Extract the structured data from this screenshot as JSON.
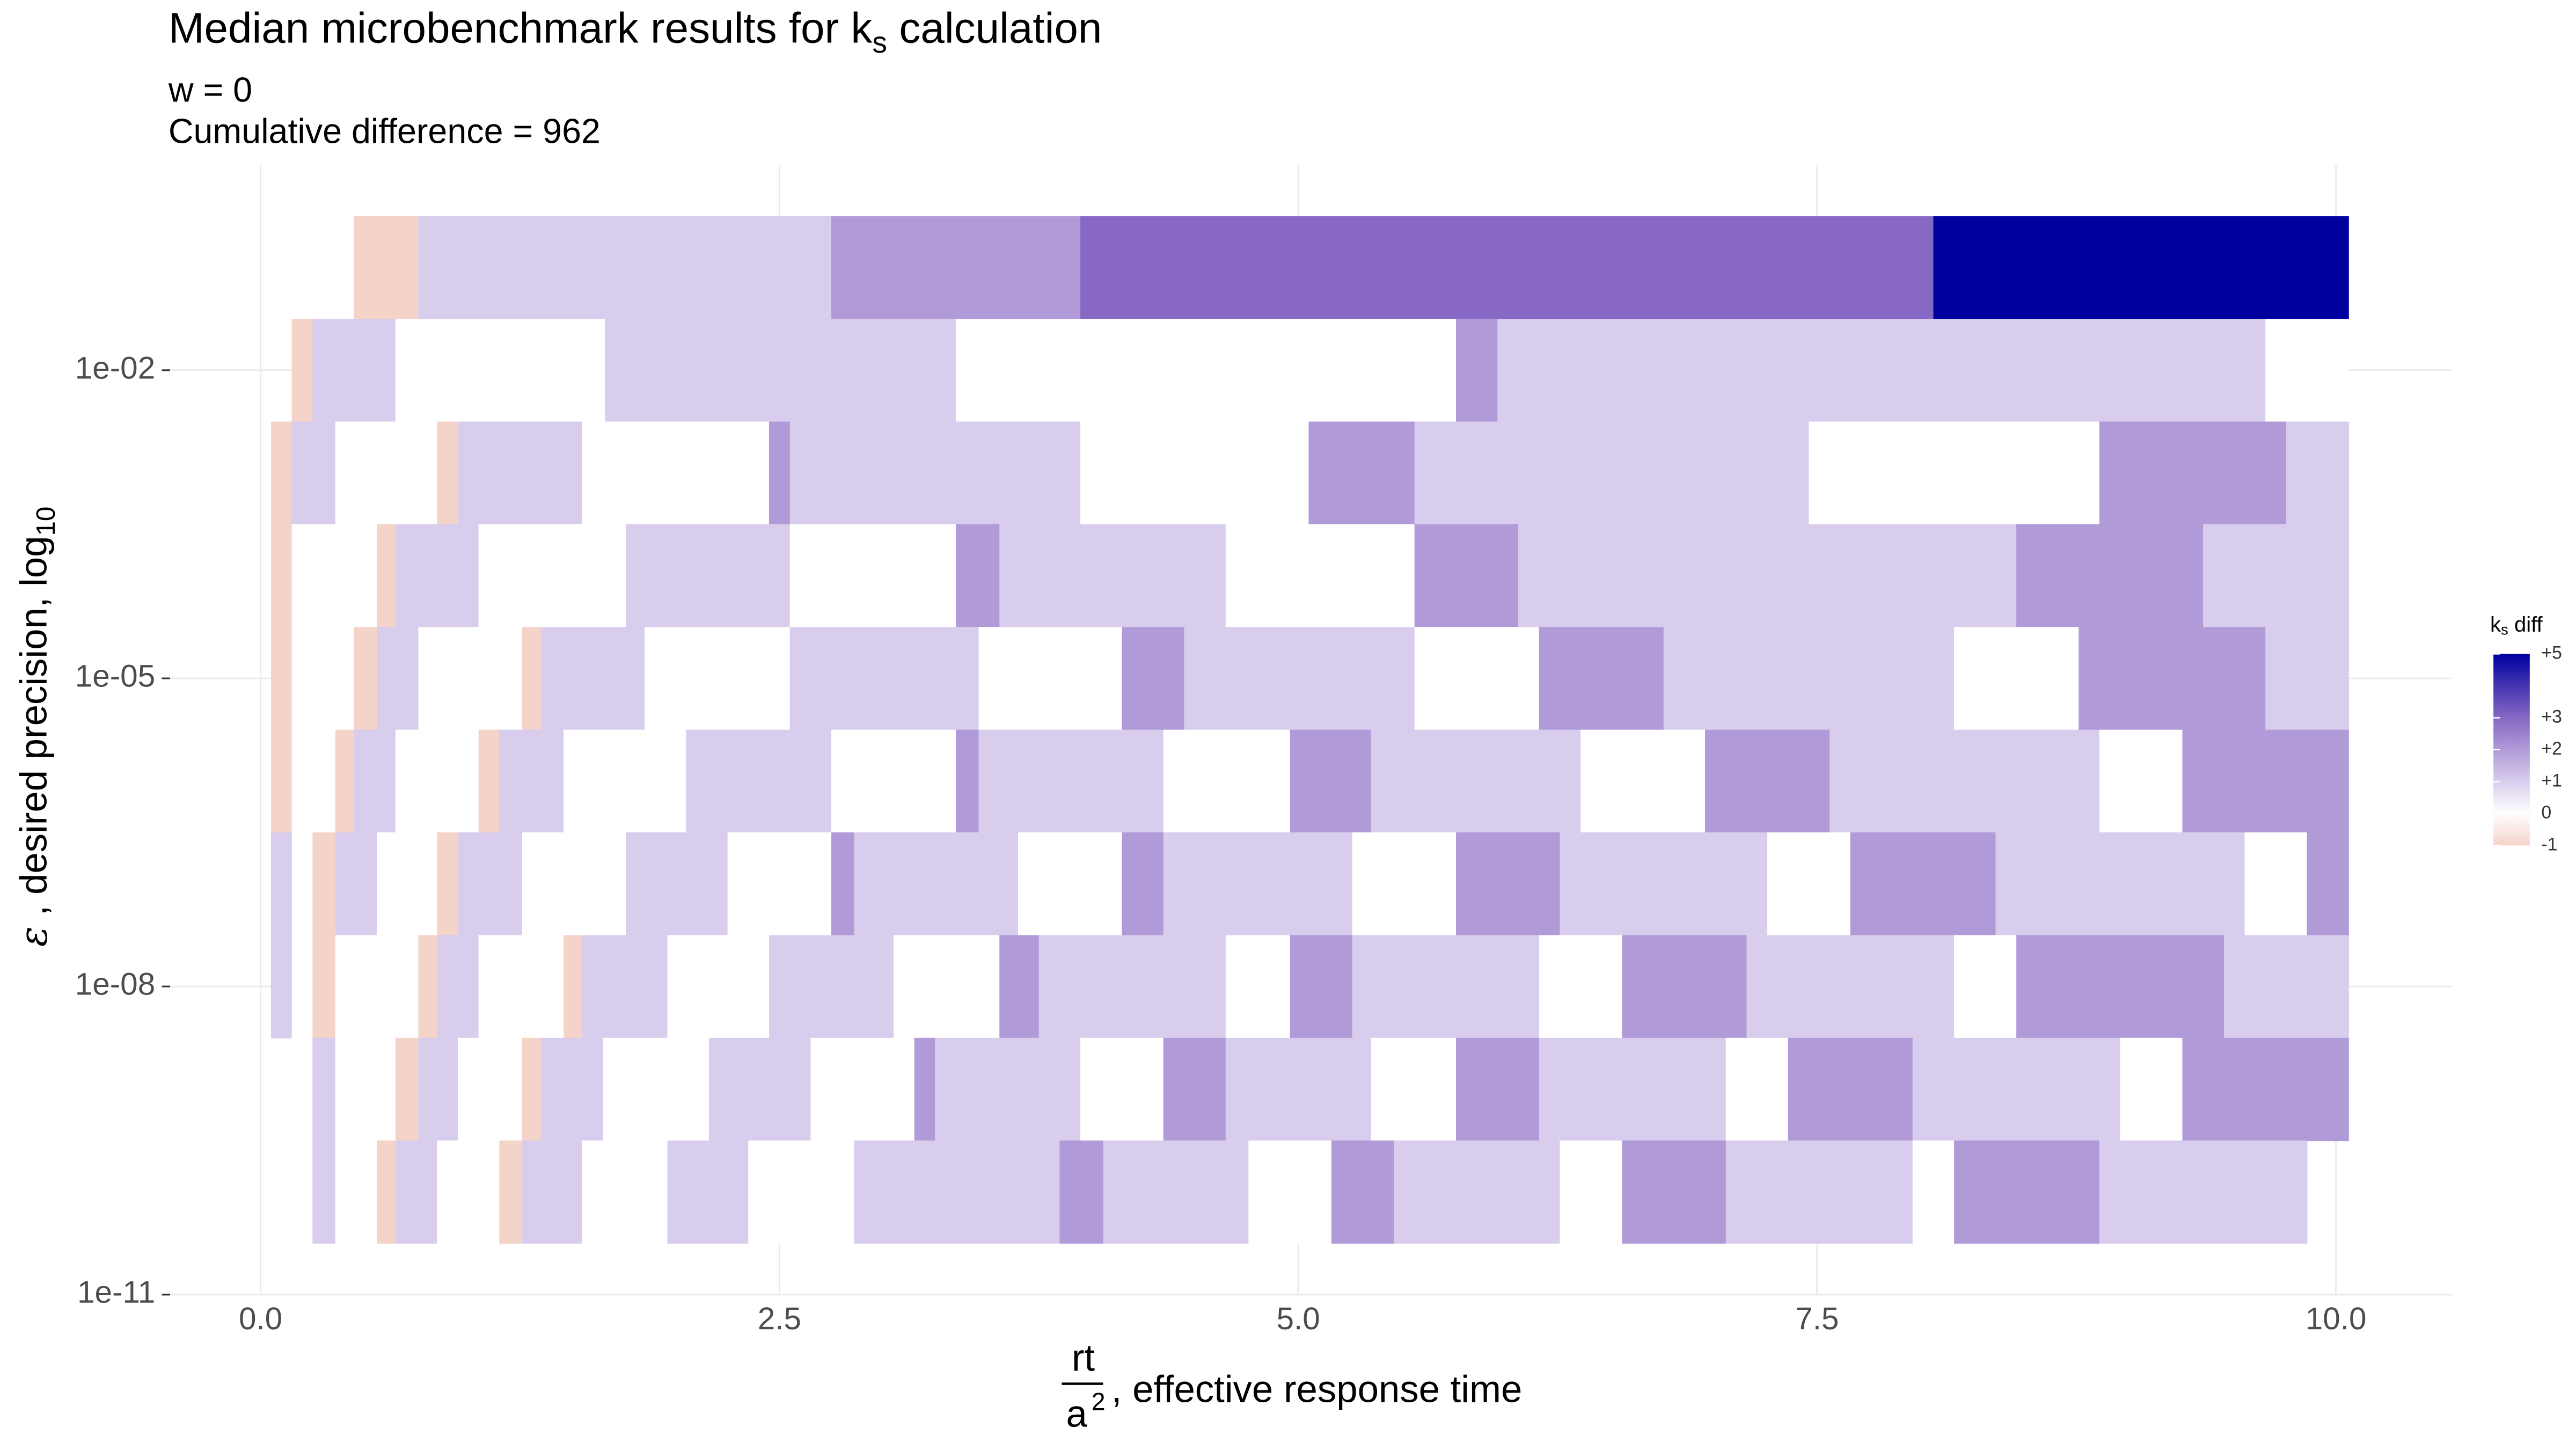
{
  "chart_data": {
    "type": "heatmap",
    "title_parts": [
      "Median microbenchmark results for  k",
      "s",
      "  calculation"
    ],
    "subtitle_lines": [
      "w = 0",
      "Cumulative difference = 962"
    ],
    "y_label_parts": [
      "ε",
      " , desired precision,  log",
      "10"
    ],
    "x_label": {
      "numerator": "rt",
      "denominator": "a",
      "exponent": "2",
      "text": ", effective response time"
    },
    "legend_title_parts": [
      "k",
      "s",
      " diff"
    ],
    "xlim": [
      -0.46,
      10.56
    ],
    "xticks": [
      {
        "value": 0,
        "label": "0.0"
      },
      2.5,
      {
        "value": 5,
        "label": "5.0"
      },
      7.5,
      {
        "value": 10,
        "label": "10.0"
      }
    ],
    "ylim": [
      1e-11,
      1
    ],
    "y_scale": "log",
    "yticks": [
      {
        "value": 0.01,
        "label": "1e-02"
      },
      {
        "value": 1e-05,
        "label": "1e-05"
      },
      {
        "value": 1e-08,
        "label": "1e-08"
      },
      {
        "value": 1e-11,
        "label": "1e-11"
      }
    ],
    "grid": true,
    "color_scale": [
      {
        "value": -1,
        "color": "#f4d3c9"
      },
      {
        "value": 0,
        "color": "#ffffff"
      },
      {
        "value": 1,
        "color": "#d9cded"
      },
      {
        "value": 2,
        "color": "#b09ad8"
      },
      {
        "value": 3,
        "color": "#8768c4"
      },
      {
        "value": 5,
        "color": "#00009f"
      }
    ],
    "legend_ticks": [
      {
        "value": 5,
        "label": "+5"
      },
      {
        "value": 3,
        "label": "+3"
      },
      {
        "value": 2,
        "label": "+2"
      },
      {
        "value": 1,
        "label": "+1"
      },
      0,
      -1
    ],
    "rows": [
      {
        "y": 0.1,
        "x": [
          0.45,
          0.76,
          2.75,
          3.95,
          8.06,
          10.06
        ],
        "values": [
          -1,
          1,
          2,
          3,
          5
        ]
      },
      {
        "y": 0.01,
        "x": [
          0.15,
          0.25,
          0.65,
          1.66,
          3.35,
          5.76,
          5.96,
          9.66,
          10.06
        ],
        "values": [
          -1,
          1,
          0,
          1,
          0,
          2,
          1,
          0
        ]
      },
      {
        "y": 0.001,
        "x": [
          0.05,
          0.15,
          0.36,
          0.85,
          0.95,
          1.55,
          2.45,
          2.55,
          3.95,
          5.05,
          5.56,
          7.46,
          8.86,
          9.76,
          10.06
        ],
        "values": [
          -1,
          1,
          0,
          -1,
          1,
          0,
          2,
          1,
          0,
          2,
          1,
          0,
          2,
          1
        ]
      },
      {
        "y": 0.0001,
        "x": [
          0.05,
          0.15,
          0.56,
          0.65,
          1.05,
          1.76,
          2.55,
          3.35,
          3.56,
          4.65,
          5.56,
          6.06,
          8.46,
          9.36,
          10.06
        ],
        "values": [
          -1,
          0,
          -1,
          1,
          0,
          1,
          0,
          2,
          1,
          0,
          2,
          1,
          2,
          1
        ]
      },
      {
        "y": 1e-05,
        "x": [
          0.05,
          0.15,
          0.45,
          0.56,
          0.76,
          1.26,
          1.35,
          1.85,
          2.55,
          3.46,
          4.15,
          4.45,
          5.56,
          6.16,
          6.76,
          8.16,
          8.76,
          9.66,
          10.06
        ],
        "values": [
          -1,
          0,
          -1,
          1,
          0,
          -1,
          1,
          0,
          1,
          0,
          2,
          1,
          0,
          2,
          1,
          0,
          2,
          1
        ]
      },
      {
        "y": 1e-06,
        "x": [
          0.05,
          0.15,
          0.36,
          0.45,
          0.65,
          1.05,
          1.15,
          1.46,
          2.05,
          2.75,
          3.35,
          3.46,
          4.35,
          4.96,
          5.35,
          6.36,
          6.96,
          7.56,
          8.86,
          9.26,
          10.06
        ],
        "values": [
          -1,
          0,
          -1,
          1,
          0,
          -1,
          1,
          0,
          1,
          0,
          2,
          1,
          0,
          2,
          1,
          0,
          2,
          1,
          0,
          2
        ]
      },
      {
        "y": 1e-07,
        "x": [
          0.05,
          0.15,
          0.25,
          0.36,
          0.56,
          0.85,
          0.95,
          1.26,
          1.76,
          2.25,
          2.75,
          2.86,
          3.65,
          4.15,
          4.35,
          5.26,
          5.76,
          6.26,
          7.26,
          7.66,
          8.36,
          9.56,
          9.86,
          10.06
        ],
        "values": [
          1,
          0,
          -1,
          1,
          0,
          -1,
          1,
          0,
          1,
          0,
          2,
          1,
          0,
          2,
          1,
          0,
          2,
          1,
          0,
          2,
          1,
          0,
          2
        ]
      },
      {
        "y": 1e-08,
        "x": [
          0.05,
          0.15,
          0.25,
          0.36,
          0.76,
          0.85,
          1.05,
          1.46,
          1.55,
          1.96,
          2.45,
          3.05,
          3.56,
          3.75,
          4.65,
          4.96,
          5.26,
          6.16,
          6.56,
          7.16,
          8.16,
          8.46,
          9.46,
          10.06
        ],
        "values": [
          1,
          0,
          -1,
          0,
          -1,
          1,
          0,
          -1,
          1,
          0,
          1,
          0,
          2,
          1,
          0,
          2,
          1,
          0,
          2,
          1,
          0,
          2,
          1
        ]
      },
      {
        "y": 1e-09,
        "x": [
          0.25,
          0.36,
          0.65,
          0.76,
          0.95,
          1.26,
          1.35,
          1.65,
          2.16,
          2.65,
          3.15,
          3.25,
          3.95,
          4.35,
          4.65,
          5.35,
          5.76,
          6.16,
          7.06,
          7.36,
          7.96,
          8.96,
          9.26,
          10.06
        ],
        "values": [
          1,
          0,
          -1,
          1,
          0,
          -1,
          1,
          0,
          1,
          0,
          2,
          1,
          0,
          2,
          1,
          0,
          2,
          1,
          0,
          2,
          1,
          0,
          2
        ]
      },
      {
        "y": 1e-10,
        "x": [
          0.25,
          0.36,
          0.56,
          0.65,
          0.85,
          1.15,
          1.26,
          1.55,
          1.96,
          2.35,
          2.86,
          3.85,
          4.06,
          4.76,
          5.16,
          5.46,
          6.26,
          6.56,
          7.06,
          7.96,
          8.16,
          8.86,
          9.86
        ],
        "values": [
          1,
          0,
          -1,
          1,
          0,
          -1,
          1,
          0,
          1,
          0,
          1,
          2,
          1,
          0,
          2,
          1,
          0,
          2,
          1,
          0,
          2,
          1
        ]
      }
    ]
  }
}
